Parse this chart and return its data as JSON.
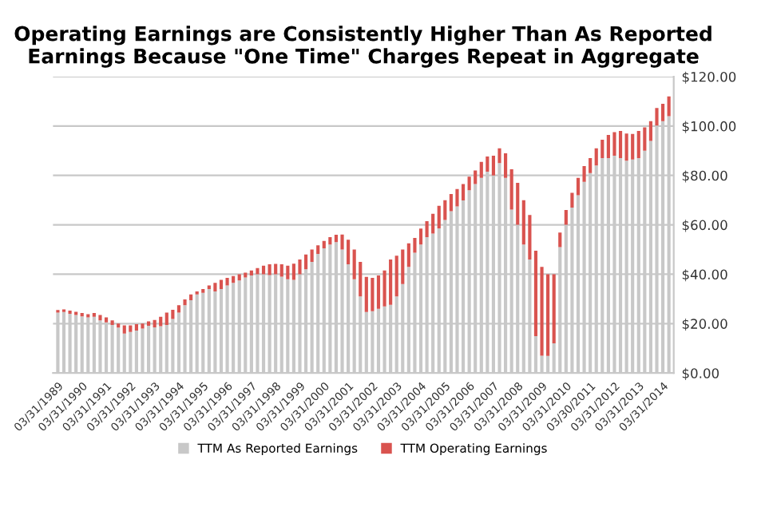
{
  "chart_data": {
    "type": "bar",
    "title": "Operating Earnings are Consistently Higher Than As Reported\nEarnings Because \"One Time\" Charges Repeat in Aggregate",
    "categories": [
      "03/31/1989",
      null,
      null,
      null,
      "03/31/1990",
      null,
      null,
      null,
      "03/31/1991",
      null,
      null,
      null,
      "03/31/1992",
      null,
      null,
      null,
      "03/31/1993",
      null,
      null,
      null,
      "03/31/1994",
      null,
      null,
      null,
      "03/31/1995",
      null,
      null,
      null,
      "03/31/1996",
      null,
      null,
      null,
      "03/31/1997",
      null,
      null,
      null,
      "03/31/1998",
      null,
      null,
      null,
      "03/31/1999",
      null,
      null,
      null,
      "03/31/2000",
      null,
      null,
      null,
      "03/31/2001",
      null,
      null,
      null,
      "03/31/2002",
      null,
      null,
      null,
      "03/31/2003",
      null,
      null,
      null,
      "03/31/2004",
      null,
      null,
      null,
      "03/31/2005",
      null,
      null,
      null,
      "03/31/2006",
      null,
      null,
      null,
      "03/31/2007",
      null,
      null,
      null,
      "03/31/2008",
      null,
      null,
      null,
      "03/31/2009",
      null,
      null,
      null,
      "03/31/2010",
      null,
      null,
      null,
      "03/30/2011",
      null,
      null,
      null,
      "03/31/2012",
      null,
      null,
      null,
      "03/31/2013",
      null,
      null,
      null,
      "03/31/2014",
      null
    ],
    "stacked": true,
    "series": [
      {
        "name": "TTM As Reported Earnings",
        "color": "#c8c8c8",
        "values": [
          24.5,
          24.7,
          24.0,
          23.5,
          22.9,
          22.5,
          22.8,
          21.3,
          20.5,
          19.5,
          18.4,
          16.0,
          16.6,
          17.2,
          18.0,
          19.1,
          18.5,
          19.0,
          19.5,
          21.9,
          24.5,
          27.5,
          29.5,
          31.8,
          32.5,
          34.0,
          33.0,
          34.0,
          35.5,
          36.5,
          37.5,
          38.7,
          39.5,
          40.0,
          40.0,
          39.7,
          40.0,
          39.0,
          38.0,
          37.7,
          40.0,
          42.0,
          45.0,
          48.2,
          50.5,
          52.0,
          53.0,
          50.0,
          44.0,
          38.0,
          31.0,
          24.7,
          25.0,
          26.0,
          27.0,
          27.6,
          31.0,
          36.0,
          43.0,
          48.7,
          52.0,
          55.0,
          56.5,
          58.6,
          62.0,
          65.5,
          67.5,
          69.9,
          74.0,
          76.5,
          79.0,
          81.5,
          80.0,
          85.0,
          79.0,
          66.2,
          60.0,
          52.0,
          46.0,
          14.9,
          7.0,
          6.9,
          12.0,
          51.0,
          60.0,
          67.0,
          72.0,
          77.4,
          81.0,
          84.0,
          87.0,
          87.0,
          88.0,
          87.0,
          86.0,
          86.5,
          87.0,
          90.0,
          94.0,
          100.2,
          102.0,
          104.0
        ]
      },
      {
        "name": "TTM Operating Earnings",
        "color": "#d9534f",
        "values": [
          1.0,
          1.1,
          1.3,
          1.3,
          1.4,
          1.3,
          1.5,
          2.2,
          2.0,
          1.8,
          1.6,
          3.3,
          2.7,
          2.6,
          2.0,
          1.8,
          3.0,
          3.8,
          5.0,
          3.7,
          3.0,
          2.3,
          2.3,
          1.2,
          1.5,
          1.5,
          3.5,
          3.7,
          3.0,
          2.8,
          2.5,
          1.9,
          2.0,
          2.5,
          3.5,
          4.3,
          4.2,
          5.0,
          5.5,
          6.6,
          6.0,
          6.0,
          5.0,
          3.5,
          3.0,
          3.0,
          3.0,
          6.1,
          10.0,
          12.0,
          14.0,
          14.2,
          13.5,
          13.5,
          14.5,
          18.4,
          16.5,
          14.0,
          9.5,
          6.0,
          6.5,
          6.5,
          8.0,
          9.1,
          8.0,
          7.0,
          7.0,
          6.6,
          5.5,
          5.5,
          6.5,
          6.2,
          8.0,
          6.0,
          10.0,
          16.3,
          17.0,
          18.0,
          18.0,
          34.6,
          36.0,
          33.1,
          28.0,
          5.9,
          6.0,
          6.0,
          7.0,
          6.4,
          6.0,
          7.0,
          7.5,
          9.4,
          9.5,
          11.0,
          11.0,
          10.3,
          11.0,
          9.5,
          8.0,
          7.1,
          7.0,
          8.0
        ]
      }
    ],
    "ylim": [
      0,
      120
    ],
    "yticks": [
      {
        "value": 0,
        "label": "$0.00"
      },
      {
        "value": 20,
        "label": "$20.00"
      },
      {
        "value": 40,
        "label": "$40.00"
      },
      {
        "value": 60,
        "label": "$60.00"
      },
      {
        "value": 80,
        "label": "$80.00"
      },
      {
        "value": 100,
        "label": "$100.00"
      },
      {
        "value": 120,
        "label": "$120.00"
      }
    ],
    "grid": "y",
    "legend": "bottom"
  }
}
